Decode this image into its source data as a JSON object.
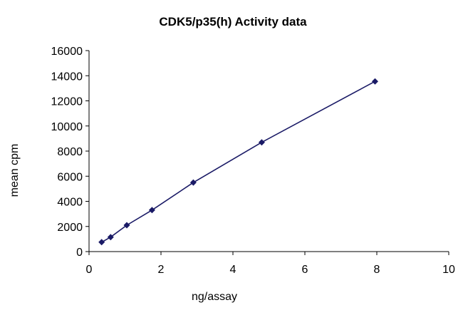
{
  "chart_data": {
    "type": "scatter",
    "title": "CDK5/p35(h) Activity data",
    "xlabel": "ng/assay",
    "ylabel": "mean cpm",
    "xlim": [
      0,
      10
    ],
    "ylim": [
      0,
      16000
    ],
    "x_ticks": [
      0,
      2,
      4,
      6,
      8,
      10
    ],
    "x_tick_labels": [
      "0",
      "2",
      "4",
      "6",
      "8",
      "10"
    ],
    "y_ticks": [
      0,
      2000,
      4000,
      6000,
      8000,
      10000,
      12000,
      14000,
      16000
    ],
    "y_tick_labels": [
      "0",
      "2000",
      "4000",
      "6000",
      "8000",
      "10000",
      "12000",
      "14000",
      "16000"
    ],
    "grid": false,
    "legend": false,
    "series": [
      {
        "x": [
          0.35,
          0.6,
          1.05,
          1.75,
          2.9,
          4.8,
          7.95
        ],
        "y": [
          750,
          1150,
          2100,
          3300,
          5500,
          8700,
          13550
        ],
        "connected": true,
        "marker": "diamond",
        "color": "#1a1a66"
      }
    ]
  }
}
